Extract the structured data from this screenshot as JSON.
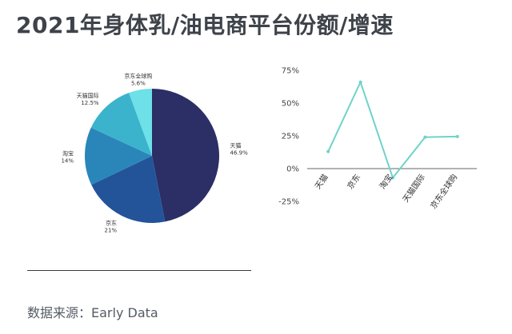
{
  "title": "2021年身体乳/油电商平台份额/增速",
  "source": "数据来源：Early Data",
  "chart_data": [
    {
      "type": "pie",
      "slices": [
        {
          "label": "天猫",
          "value_label": "46.9%",
          "value": 46.9,
          "color": "#2b2f66"
        },
        {
          "label": "京东",
          "value_label": "21%",
          "value": 21,
          "color": "#23549a"
        },
        {
          "label": "淘宝",
          "value_label": "14%",
          "value": 14,
          "color": "#2a86b8"
        },
        {
          "label": "天猫国际",
          "value_label": "12.5%",
          "value": 12.5,
          "color": "#3bb3cc"
        },
        {
          "label": "京东全球购",
          "value_label": "5.6%",
          "value": 5.6,
          "color": "#6de0e8"
        }
      ]
    },
    {
      "type": "line",
      "categories": [
        "天猫",
        "京东",
        "淘宝",
        "天猫国际",
        "京东全球购"
      ],
      "series": [
        {
          "values": [
            13,
            66,
            -7,
            24,
            24.5
          ],
          "color": "#6fd3c9"
        }
      ],
      "yticks": [
        "75%",
        "50%",
        "25%",
        "0%",
        "-25%"
      ],
      "ytick_values": [
        75,
        50,
        25,
        0,
        -25
      ],
      "ylim": [
        -25,
        75
      ],
      "grid": false
    }
  ]
}
